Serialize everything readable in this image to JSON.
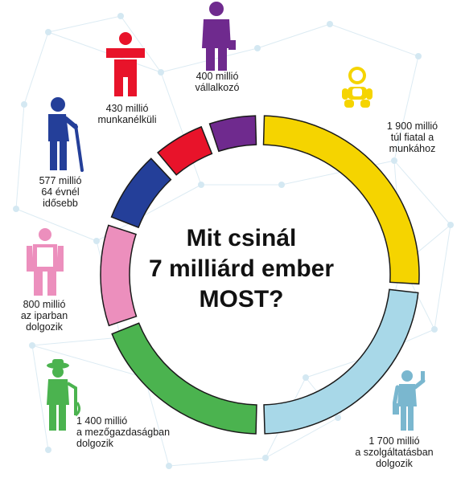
{
  "chart_data": {
    "type": "pie",
    "style": "donut",
    "title_lines": [
      "Mit csinál",
      "7 milliárd ember",
      "MOST?"
    ],
    "categories": [
      "túl fiatal a munkához",
      "a szolgáltatásban dolgozik",
      "a mezőgazdaságban dolgozik",
      "az iparban dolgozik",
      "64 évnél idősebb",
      "munkanélküli",
      "vállalkozó"
    ],
    "values": [
      1900,
      1700,
      1400,
      800,
      577,
      430,
      400
    ],
    "unit": "millió",
    "colors": [
      "#f5d400",
      "#a8d8e8",
      "#4bb34f",
      "#ec8fbd",
      "#243f99",
      "#e8132a",
      "#6f2a8e"
    ],
    "labels": [
      {
        "id": "young",
        "lines": [
          "1 900 millió",
          "túl fiatal a",
          "munkához"
        ],
        "icon": "baby-icon"
      },
      {
        "id": "services",
        "lines": [
          "1 700 millió",
          "a szolgáltatásban",
          "dolgozik"
        ],
        "icon": "waiter-icon"
      },
      {
        "id": "agriculture",
        "lines": [
          "1 400 millió",
          "a mezőgazdaságban",
          "dolgozik"
        ],
        "icon": "farmer-icon"
      },
      {
        "id": "industry",
        "lines": [
          "800 millió",
          "az iparban",
          "dolgozik"
        ],
        "icon": "worker-icon"
      },
      {
        "id": "elderly",
        "lines": [
          "577 millió",
          "64 évnél",
          "idősebb"
        ],
        "icon": "elderly-icon"
      },
      {
        "id": "unemployed",
        "lines": [
          "430 millió",
          "munkanélküli"
        ],
        "icon": "unemployed-icon"
      },
      {
        "id": "entrepreneur",
        "lines": [
          "400 millió",
          "vállalkozó"
        ],
        "icon": "businessman-icon"
      }
    ]
  }
}
